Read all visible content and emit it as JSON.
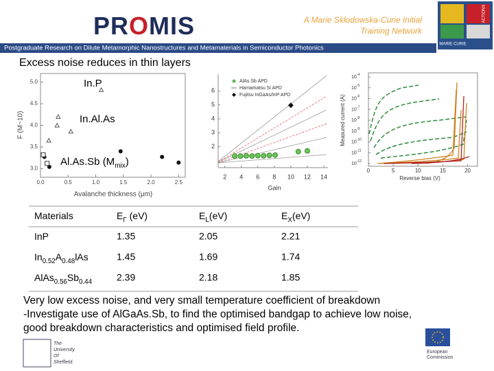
{
  "header": {
    "logo_a": "PR",
    "logo_b": "O",
    "logo_c": "MIS",
    "network_1": "A Marie Skłodowska-Curie Initial",
    "network_2": "Training Network",
    "badge_1": "MARIE CURIE",
    "badge_2": "ACTIONS",
    "subtitle": "Postgraduate Research on Dilute Metamorphic Nanostructures and Metamaterials in Semiconductor Photonics"
  },
  "heading": "Excess noise reduces in thin layers",
  "plot1": {
    "ylabel": "F (M~10)",
    "xlabel": "Avalanche thickness (μm)",
    "xlim": [
      0,
      2.62
    ],
    "ylim": [
      2.8,
      5.2
    ],
    "xticks": [
      {
        "value": 0,
        "label": "0.0"
      },
      {
        "value": 0.5,
        "label": "0.5"
      },
      {
        "value": 1,
        "label": "1.0"
      },
      {
        "value": 1.5,
        "label": "1.5"
      },
      {
        "value": 2,
        "label": "2.0"
      },
      {
        "value": 2.5,
        "label": "2.5"
      }
    ],
    "yticks": [
      {
        "value": 3,
        "label": "3.0"
      },
      {
        "value": 3.5,
        "label": "3.5"
      },
      {
        "value": 4,
        "label": "4.0"
      },
      {
        "value": 4.5,
        "label": "4.5"
      },
      {
        "value": 5,
        "label": "5.0"
      }
    ],
    "label_inp": "In.P",
    "label_inalas": "In.Al.As",
    "label_alassb_a": "Al.As.Sb (M",
    "label_alassb_sub": "mix",
    "label_alassb_b": ")",
    "triangles": {
      "x": [
        1.1,
        0.32,
        0.3,
        0.55,
        0.15
      ],
      "y": [
        4.82,
        4.2,
        4.0,
        3.86,
        3.65
      ]
    },
    "circles": {
      "x": [
        2.2,
        2.5,
        1.45,
        0.07,
        0.16
      ],
      "y": [
        3.27,
        3.14,
        3.4,
        3.27,
        3.04
      ]
    },
    "squares": {
      "x": [
        0.05,
        0.12
      ],
      "y": [
        3.32,
        3.12
      ]
    }
  },
  "plot2": {
    "xlabel": "Gain",
    "xlim": [
      1.2,
      14.5
    ],
    "ylim": [
      0.5,
      7.2
    ],
    "xticks": [
      2,
      4,
      6,
      8,
      10,
      12,
      14
    ],
    "yticks": [
      2,
      3,
      4,
      5,
      6
    ],
    "legend": [
      "AlAs.Sb APD",
      "Hamamatsu Si APD",
      "Fujitsu InGaAs/InP APD"
    ],
    "green": {
      "x": [
        3.2,
        3.9,
        4.6,
        5.3,
        6.0,
        6.7,
        7.4,
        8.1,
        10.9,
        12.0
      ],
      "y": [
        1.33,
        1.33,
        1.35,
        1.33,
        1.36,
        1.35,
        1.38,
        1.4,
        1.65,
        1.7
      ]
    },
    "diamond": {
      "x": [
        10
      ],
      "y": [
        4.97
      ]
    }
  },
  "plot3": {
    "ylabel": "Measured current (A)",
    "xlabel": "Reverse bias (V)",
    "xlim": [
      0,
      22
    ],
    "xticks": [
      0,
      5,
      10,
      15,
      20
    ],
    "ylim": [
      1e-12,
      0.0001
    ],
    "yticks": [
      {
        "value": 0.0001,
        "base": "10",
        "exponent": -4
      },
      {
        "value": 1e-05,
        "base": "10",
        "exponent": -5
      },
      {
        "value": 1e-06,
        "base": "10",
        "exponent": -6
      },
      {
        "value": 1e-07,
        "base": "10",
        "exponent": -7
      },
      {
        "value": 1e-08,
        "base": "10",
        "exponent": -8
      },
      {
        "value": 1e-09,
        "base": "10",
        "exponent": -9
      },
      {
        "value": 1e-10,
        "base": "10",
        "exponent": -10
      },
      {
        "value": 1e-11,
        "base": "10",
        "exponent": -11
      },
      {
        "value": 1e-12,
        "base": "10",
        "exponent": -12
      }
    ]
  },
  "table": {
    "header": [
      [
        "Materials"
      ],
      [
        "E",
        "Γ",
        " (eV)"
      ],
      [
        "E",
        "L",
        "(eV)"
      ],
      [
        "E",
        "X",
        "(eV)"
      ]
    ],
    "rows": [
      [
        [
          "InP"
        ],
        1.35,
        2.05,
        2.21
      ],
      [
        [
          "In",
          "0.52",
          "A",
          "0.48",
          "lAs"
        ],
        1.45,
        1.69,
        1.74
      ],
      [
        [
          "AlAs",
          "0.56",
          "Sb",
          "0.44"
        ],
        2.39,
        2.18,
        1.85
      ]
    ]
  },
  "body": [
    "Very low excess noise, and very small temperature coefficient of breakdown",
    "-Investigate use of AlGaAs.Sb, to find the optimised bandgap to achieve low noise,",
    "good breakdown characteristics and optimised field profile."
  ],
  "footer": {
    "university": [
      "The",
      "University",
      "Of",
      "Sheffield."
    ],
    "commission": [
      "European",
      "Commission"
    ]
  }
}
